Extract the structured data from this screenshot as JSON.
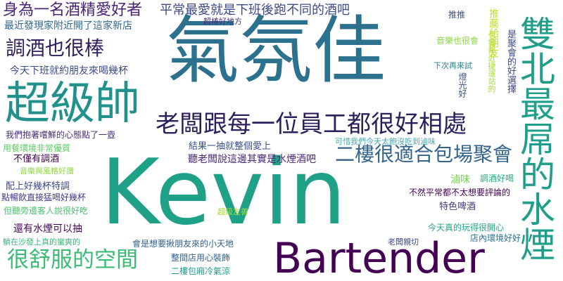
{
  "words": [
    {
      "text": "Kevin",
      "color": "#1fa187"
    },
    {
      "text": "氣氛佳",
      "color": "#2c728e"
    },
    {
      "text": "Bartender",
      "color": "#440154"
    },
    {
      "text": "雙北最屌的水煙",
      "color": "#1f9e89"
    },
    {
      "text": "超級帥",
      "color": "#21918c"
    },
    {
      "text": "老闆跟每一位員工都很好相處",
      "color": "#2d1e5c"
    },
    {
      "text": "二樓很適合包場聚會",
      "color": "#33638d"
    },
    {
      "text": "調酒也很棒",
      "color": "#2f1f5c"
    },
    {
      "text": "很舒服的空間",
      "color": "#3cbb75"
    },
    {
      "text": "身為一名酒精愛好者",
      "color": "#482475"
    },
    {
      "text": "平常最愛就是下班後跑不同的酒吧",
      "color": "#3f4a8a"
    },
    {
      "text": "最近發現家附近開了這家新店",
      "color": "#31688e"
    },
    {
      "text": "今天下班就約朋友來喝幾杯",
      "color": "#3e4c8a"
    },
    {
      "text": "超棒好地方",
      "color": "#46327e"
    },
    {
      "text": "我們抱著嚐鮮的心態點了一壺",
      "color": "#472d7b"
    },
    {
      "text": "用餐環境非常優質",
      "color": "#5cc863"
    },
    {
      "text": "結果一抽就整個愛上",
      "color": "#3b528b"
    },
    {
      "text": "可惜我們今天太飽沒吃到滷味",
      "color": "#46a8b0"
    },
    {
      "text": "聽老闆說這邊其實是水煙酒吧",
      "color": "#482878"
    },
    {
      "text": "不僅有調酒",
      "color": "#440154"
    },
    {
      "text": "音樂與風格好讚",
      "color": "#8fd744"
    },
    {
      "text": "配上好幾杯特調",
      "color": "#3e4989"
    },
    {
      "text": "點暢飲直接猛喝好幾杯",
      "color": "#443983"
    },
    {
      "text": "但聽旁邊客人說很好吃",
      "color": "#4ac16d"
    },
    {
      "text": "還有水煙可以抽",
      "color": "#46075a"
    },
    {
      "text": "躺在沙發上真的蠻爽的",
      "color": "#35b779"
    },
    {
      "text": "會是想要揪朋友來的小天地",
      "color": "#34618d"
    },
    {
      "text": "超級友善",
      "color": "#a2da37"
    },
    {
      "text": "整間店用心裝飾",
      "color": "#33638d"
    },
    {
      "text": "二樓包廂冷氣涼",
      "color": "#1f9e89"
    },
    {
      "text": "滷味",
      "color": "#75d054"
    },
    {
      "text": "調酒好喝",
      "color": "#27ad81"
    },
    {
      "text": "特色啤酒",
      "color": "#443b84"
    },
    {
      "text": "不然平常都不太想要評論的",
      "color": "#440154"
    },
    {
      "text": "今天真的玩得很開心",
      "color": "#21a685"
    },
    {
      "text": "店內環境好好",
      "color": "#2c728e"
    },
    {
      "text": "老闆親切",
      "color": "#3e4989"
    },
    {
      "text": "下次再來試",
      "color": "#25848e"
    },
    {
      "text": "推推",
      "color": "#3a548c"
    },
    {
      "text": "音樂也很會",
      "color": "#8bd646"
    },
    {
      "text": "燈光好",
      "color": "#3b528b"
    },
    {
      "text": "也蠻鄰近捷運站的",
      "color": "#a8db34"
    },
    {
      "text": "推薦給朋友",
      "color": "#c2df23"
    },
    {
      "text": "是聚會的好選擇",
      "color": "#3f4788"
    }
  ]
}
